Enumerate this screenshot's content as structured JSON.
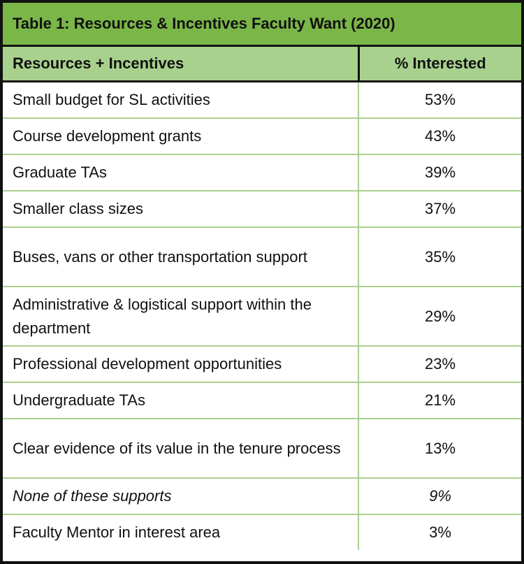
{
  "table": {
    "title": "Table 1:  Resources & Incentives Faculty Want (2020)",
    "header": [
      "Resources + Incentives",
      "% Interested"
    ],
    "rows": [
      [
        "Small budget for SL activities",
        "53%"
      ],
      [
        "Course development grants",
        "43%"
      ],
      [
        "Graduate TAs",
        "39%"
      ],
      [
        "Smaller class sizes",
        "37%"
      ],
      [
        "Buses, vans or other transportation support",
        "35%"
      ],
      [
        "Administrative & logistical support within the department",
        "29%"
      ],
      [
        "Professional development opportunities",
        "23%"
      ],
      [
        "Undergraduate TAs",
        "21%"
      ],
      [
        "Clear evidence of its value in the tenure process",
        "13%"
      ],
      [
        "None of these supports",
        "9%"
      ],
      [
        "Faculty Mentor in interest area",
        "3%"
      ]
    ]
  }
}
